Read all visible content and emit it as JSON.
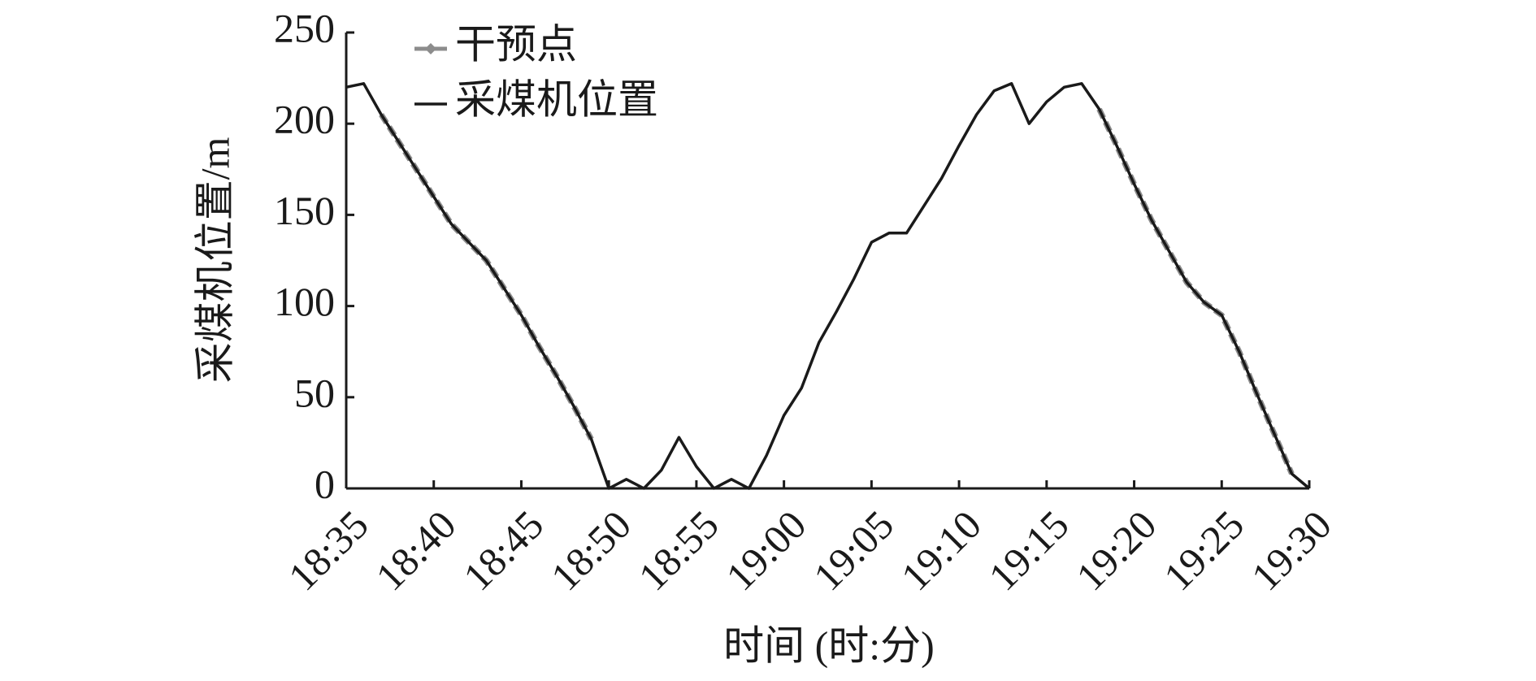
{
  "chart_data": {
    "type": "line",
    "xlabel": "时间 (时:分)",
    "ylabel": "采煤机位置/m",
    "x": [
      "18:35",
      "18:36",
      "18:37",
      "18:38",
      "18:39",
      "18:40",
      "18:41",
      "18:42",
      "18:43",
      "18:44",
      "18:45",
      "18:46",
      "18:47",
      "18:48",
      "18:49",
      "18:50",
      "18:51",
      "18:52",
      "18:53",
      "18:54",
      "18:55",
      "18:56",
      "18:57",
      "18:58",
      "18:59",
      "19:00",
      "19:01",
      "19:02",
      "19:03",
      "19:04",
      "19:05",
      "19:06",
      "19:07",
      "19:08",
      "19:09",
      "19:10",
      "19:11",
      "19:12",
      "19:13",
      "19:14",
      "19:15",
      "19:16",
      "19:17",
      "19:18",
      "19:19",
      "19:20",
      "19:21",
      "19:22",
      "19:23",
      "19:24",
      "19:25",
      "19:26",
      "19:27",
      "19:28",
      "19:29",
      "19:30"
    ],
    "series": [
      {
        "name": "干预点",
        "color": "#8c8c8c",
        "values": [
          null,
          null,
          205,
          190,
          175,
          160,
          145,
          135,
          125,
          110,
          95,
          78,
          62,
          45,
          27,
          null,
          null,
          null,
          null,
          null,
          null,
          null,
          null,
          null,
          null,
          null,
          null,
          null,
          null,
          null,
          null,
          null,
          null,
          null,
          null,
          null,
          null,
          null,
          null,
          null,
          null,
          null,
          null,
          208,
          188,
          167,
          147,
          130,
          113,
          102,
          95,
          75,
          52,
          30,
          8,
          null
        ]
      },
      {
        "name": "采煤机位置",
        "color": "#1a1a1a",
        "values": [
          220,
          222,
          205,
          190,
          175,
          160,
          145,
          135,
          125,
          110,
          95,
          78,
          62,
          45,
          27,
          0,
          5,
          0,
          10,
          28,
          12,
          0,
          5,
          0,
          18,
          40,
          55,
          80,
          97,
          115,
          135,
          140,
          140,
          155,
          170,
          188,
          205,
          218,
          222,
          200,
          212,
          220,
          222,
          208,
          188,
          167,
          147,
          130,
          113,
          102,
          95,
          75,
          52,
          30,
          8,
          0
        ]
      }
    ],
    "xlim": [
      "18:35",
      "19:30"
    ],
    "xticks": [
      "18:35",
      "18:40",
      "18:45",
      "18:50",
      "18:55",
      "19:00",
      "19:05",
      "19:10",
      "19:15",
      "19:20",
      "19:25",
      "19:30"
    ],
    "ylim": [
      0,
      250
    ],
    "yticks": [
      0,
      50,
      100,
      150,
      200,
      250
    ],
    "legend": "upper left"
  }
}
